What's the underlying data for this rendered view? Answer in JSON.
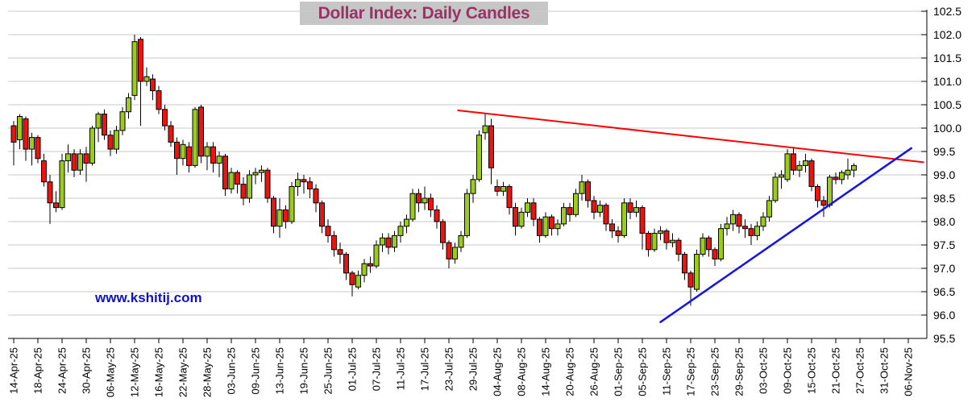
{
  "title": "Dollar Index: Daily Candles",
  "watermark": "www.kshitij.com",
  "chart_data": {
    "type": "candlestick",
    "title": "Dollar Index: Daily Candles",
    "legend": "none",
    "grid": "horizontal",
    "y_axis": {
      "side": "right",
      "min": 95.5,
      "max": 102.5,
      "step": 0.5,
      "tick_labels": [
        "102.5",
        "102.0",
        "101.5",
        "101.0",
        "100.5",
        "100.0",
        "99.5",
        "99.0",
        "98.5",
        "98.0",
        "97.5",
        "97.0",
        "96.5",
        "96.0",
        "95.5"
      ]
    },
    "x_axis": {
      "tick_labels": [
        "14-Apr-25",
        "18-Apr-25",
        "24-Apr-25",
        "30-Apr-25",
        "06-May-25",
        "12-May-25",
        "16-May-25",
        "22-May-25",
        "28-May-25",
        "03-Jun-25",
        "09-Jun-25",
        "13-Jun-25",
        "19-Jun-25",
        "25-Jun-25",
        "01-Jul-25",
        "07-Jul-25",
        "11-Jul-25",
        "17-Jul-25",
        "23-Jul-25",
        "29-Jul-25",
        "04-Aug-25",
        "08-Aug-25",
        "14-Aug-25",
        "20-Aug-25",
        "26-Aug-25",
        "01-Sep-25",
        "05-Sep-25",
        "11-Sep-25",
        "17-Sep-25",
        "23-Sep-25",
        "29-Sep-25",
        "03-Oct-25",
        "09-Oct-25",
        "15-Oct-25",
        "21-Oct-25",
        "27-Oct-25",
        "31-Oct-25",
        "06-Nov-25"
      ],
      "candles_per_tick": 4
    },
    "colors": {
      "up": "#9BCB1C",
      "down": "#EA1410",
      "outline": "#000000",
      "grid": "#C9C9C9",
      "axis": "#000000",
      "label": "#000000",
      "trend_resistance": "#FF0000",
      "trend_support": "#1414E6",
      "title_bg": "#C6C6C6",
      "title_fg": "#993366",
      "watermark": "#1111CC"
    },
    "candles_format": [
      "open",
      "high",
      "low",
      "close"
    ],
    "candles": [
      [
        100.05,
        100.15,
        99.2,
        99.7
      ],
      [
        99.75,
        100.3,
        99.55,
        100.25
      ],
      [
        100.2,
        100.25,
        99.3,
        99.55
      ],
      [
        99.55,
        99.9,
        99.2,
        99.8
      ],
      [
        99.8,
        99.85,
        99.25,
        99.35
      ],
      [
        99.3,
        99.45,
        98.75,
        98.85
      ],
      [
        98.85,
        99.0,
        97.95,
        98.4
      ],
      [
        98.4,
        98.65,
        98.2,
        98.3
      ],
      [
        98.3,
        99.45,
        98.25,
        99.3
      ],
      [
        99.3,
        99.65,
        99.05,
        99.45
      ],
      [
        99.45,
        99.55,
        98.95,
        99.1
      ],
      [
        99.1,
        99.55,
        99.0,
        99.45
      ],
      [
        99.45,
        99.6,
        98.85,
        99.25
      ],
      [
        99.25,
        100.05,
        99.2,
        100.0
      ],
      [
        100.0,
        100.35,
        99.7,
        100.3
      ],
      [
        100.3,
        100.4,
        99.75,
        99.85
      ],
      [
        99.85,
        99.95,
        99.4,
        99.55
      ],
      [
        99.55,
        100.05,
        99.45,
        99.95
      ],
      [
        99.95,
        100.45,
        99.85,
        100.35
      ],
      [
        100.35,
        100.75,
        100.2,
        100.65
      ],
      [
        100.7,
        102.0,
        100.6,
        101.85
      ],
      [
        101.9,
        101.95,
        100.05,
        101.0
      ],
      [
        101.0,
        101.3,
        100.9,
        101.1
      ],
      [
        101.05,
        101.15,
        100.6,
        100.8
      ],
      [
        100.8,
        100.9,
        100.3,
        100.4
      ],
      [
        100.4,
        100.5,
        99.95,
        100.05
      ],
      [
        100.05,
        100.15,
        99.6,
        99.7
      ],
      [
        99.7,
        99.8,
        99.0,
        99.35
      ],
      [
        99.35,
        99.75,
        99.2,
        99.65
      ],
      [
        99.6,
        99.7,
        99.05,
        99.2
      ],
      [
        99.2,
        100.45,
        99.15,
        100.4
      ],
      [
        100.45,
        100.5,
        99.25,
        99.4
      ],
      [
        99.4,
        99.7,
        99.1,
        99.6
      ],
      [
        99.6,
        99.7,
        99.05,
        99.25
      ],
      [
        99.25,
        99.5,
        98.95,
        99.4
      ],
      [
        99.4,
        99.45,
        98.55,
        98.7
      ],
      [
        98.7,
        99.15,
        98.6,
        99.05
      ],
      [
        99.05,
        99.1,
        98.6,
        98.8
      ],
      [
        98.8,
        98.95,
        98.35,
        98.5
      ],
      [
        98.5,
        99.1,
        98.4,
        99.0
      ],
      [
        99.0,
        99.15,
        98.8,
        99.05
      ],
      [
        99.05,
        99.2,
        98.85,
        99.1
      ],
      [
        99.1,
        99.15,
        98.4,
        98.5
      ],
      [
        98.5,
        98.55,
        97.75,
        97.9
      ],
      [
        97.9,
        98.5,
        97.65,
        98.25
      ],
      [
        98.25,
        98.35,
        97.85,
        98.0
      ],
      [
        98.0,
        98.85,
        97.95,
        98.75
      ],
      [
        98.75,
        99.05,
        98.55,
        98.9
      ],
      [
        98.9,
        99.0,
        98.6,
        98.85
      ],
      [
        98.85,
        98.95,
        98.5,
        98.7
      ],
      [
        98.7,
        98.8,
        98.2,
        98.4
      ],
      [
        98.4,
        98.45,
        97.75,
        97.9
      ],
      [
        97.9,
        98.05,
        97.55,
        97.7
      ],
      [
        97.7,
        97.8,
        97.25,
        97.4
      ],
      [
        97.4,
        97.55,
        97.1,
        97.3
      ],
      [
        97.3,
        97.35,
        96.75,
        96.9
      ],
      [
        96.9,
        96.95,
        96.4,
        96.65
      ],
      [
        96.6,
        96.95,
        96.55,
        96.85
      ],
      [
        96.85,
        97.2,
        96.7,
        97.1
      ],
      [
        97.1,
        97.25,
        96.9,
        97.05
      ],
      [
        97.05,
        97.6,
        97.0,
        97.5
      ],
      [
        97.5,
        97.75,
        97.35,
        97.65
      ],
      [
        97.65,
        97.75,
        97.3,
        97.45
      ],
      [
        97.45,
        97.8,
        97.35,
        97.7
      ],
      [
        97.7,
        98.0,
        97.55,
        97.9
      ],
      [
        97.9,
        98.15,
        97.75,
        98.05
      ],
      [
        98.05,
        98.7,
        98.0,
        98.6
      ],
      [
        98.6,
        98.7,
        98.2,
        98.4
      ],
      [
        98.4,
        98.75,
        98.25,
        98.5
      ],
      [
        98.5,
        98.6,
        98.1,
        98.25
      ],
      [
        98.25,
        98.35,
        97.85,
        98.0
      ],
      [
        98.0,
        98.05,
        97.4,
        97.55
      ],
      [
        97.55,
        97.6,
        97.0,
        97.2
      ],
      [
        97.2,
        97.55,
        97.1,
        97.45
      ],
      [
        97.45,
        97.8,
        97.35,
        97.7
      ],
      [
        97.7,
        98.7,
        97.65,
        98.6
      ],
      [
        98.6,
        99.0,
        98.4,
        98.9
      ],
      [
        98.9,
        99.95,
        98.85,
        99.85
      ],
      [
        99.9,
        100.3,
        99.75,
        100.05
      ],
      [
        100.05,
        100.2,
        98.8,
        99.15
      ],
      [
        98.75,
        98.9,
        98.55,
        98.65
      ],
      [
        98.65,
        98.85,
        98.55,
        98.75
      ],
      [
        98.75,
        98.8,
        98.15,
        98.3
      ],
      [
        98.3,
        98.4,
        97.7,
        97.9
      ],
      [
        97.9,
        98.3,
        97.85,
        98.2
      ],
      [
        98.2,
        98.5,
        98.1,
        98.4
      ],
      [
        98.4,
        98.5,
        97.9,
        98.05
      ],
      [
        98.05,
        98.1,
        97.55,
        97.7
      ],
      [
        97.7,
        98.2,
        97.65,
        98.1
      ],
      [
        98.1,
        98.15,
        97.7,
        97.85
      ],
      [
        97.85,
        98.05,
        97.7,
        97.95
      ],
      [
        97.95,
        98.4,
        97.9,
        98.3
      ],
      [
        98.3,
        98.4,
        98.0,
        98.15
      ],
      [
        98.15,
        98.7,
        98.1,
        98.6
      ],
      [
        98.6,
        99.0,
        98.45,
        98.85
      ],
      [
        98.85,
        98.9,
        98.3,
        98.45
      ],
      [
        98.45,
        98.55,
        98.05,
        98.2
      ],
      [
        98.2,
        98.45,
        98.1,
        98.35
      ],
      [
        98.35,
        98.4,
        97.8,
        97.95
      ],
      [
        97.95,
        98.05,
        97.65,
        97.8
      ],
      [
        97.8,
        97.9,
        97.55,
        97.7
      ],
      [
        97.7,
        98.5,
        97.65,
        98.4
      ],
      [
        98.4,
        98.5,
        98.05,
        98.2
      ],
      [
        98.2,
        98.45,
        98.1,
        98.3
      ],
      [
        98.3,
        98.35,
        97.4,
        97.75
      ],
      [
        97.75,
        97.8,
        97.25,
        97.4
      ],
      [
        97.4,
        97.85,
        97.35,
        97.75
      ],
      [
        97.75,
        97.9,
        97.6,
        97.8
      ],
      [
        97.8,
        97.85,
        97.4,
        97.55
      ],
      [
        97.55,
        97.75,
        97.45,
        97.6
      ],
      [
        97.6,
        97.65,
        97.15,
        97.3
      ],
      [
        97.3,
        97.35,
        96.75,
        96.9
      ],
      [
        96.9,
        96.95,
        96.2,
        96.6
      ],
      [
        96.55,
        97.4,
        96.5,
        97.3
      ],
      [
        97.3,
        97.75,
        97.25,
        97.65
      ],
      [
        97.65,
        97.7,
        97.25,
        97.4
      ],
      [
        97.4,
        97.45,
        97.05,
        97.2
      ],
      [
        97.2,
        97.95,
        97.15,
        97.85
      ],
      [
        97.85,
        98.1,
        97.7,
        97.95
      ],
      [
        97.95,
        98.25,
        97.8,
        98.15
      ],
      [
        98.15,
        98.2,
        97.75,
        97.9
      ],
      [
        97.9,
        98.05,
        97.65,
        97.85
      ],
      [
        97.85,
        97.95,
        97.5,
        97.7
      ],
      [
        97.7,
        98.0,
        97.6,
        97.9
      ],
      [
        97.9,
        98.2,
        97.8,
        98.1
      ],
      [
        98.1,
        98.55,
        98.0,
        98.45
      ],
      [
        98.45,
        99.05,
        98.4,
        98.95
      ],
      [
        98.95,
        99.1,
        98.7,
        99.0
      ],
      [
        98.9,
        99.55,
        98.85,
        99.45
      ],
      [
        99.45,
        99.6,
        99.0,
        99.1
      ],
      [
        99.1,
        99.3,
        98.95,
        99.2
      ],
      [
        99.2,
        99.45,
        99.05,
        99.3
      ],
      [
        99.3,
        99.35,
        98.65,
        98.75
      ],
      [
        98.75,
        98.8,
        98.3,
        98.45
      ],
      [
        98.45,
        98.55,
        98.1,
        98.35
      ],
      [
        98.35,
        99.0,
        98.3,
        98.95
      ],
      [
        98.95,
        99.05,
        98.8,
        98.9
      ],
      [
        98.9,
        99.1,
        98.8,
        99.05
      ],
      [
        99.0,
        99.35,
        98.9,
        99.1
      ],
      [
        99.1,
        99.25,
        98.95,
        99.2
      ]
    ],
    "trendlines": [
      {
        "name": "descending-resistance",
        "color_key": "trend_resistance",
        "from_index": 73.5,
        "from_value": 100.38,
        "to_index": 150.5,
        "to_value": 99.27,
        "width": 2
      },
      {
        "name": "rising-support",
        "color_key": "trend_support",
        "from_index": 107,
        "from_value": 95.85,
        "to_index": 148.5,
        "to_value": 99.57,
        "width": 2.5
      }
    ]
  }
}
